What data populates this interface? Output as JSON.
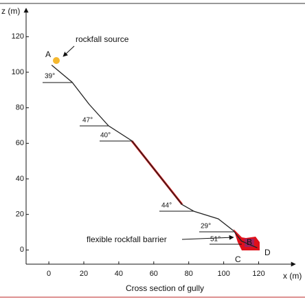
{
  "chart_data": {
    "type": "line",
    "title": "Cross section of gully",
    "x_label": "x (m)",
    "y_label": "z (m)",
    "x": [
      1.6,
      13.3,
      23.1,
      34.1,
      47.5,
      76.1,
      83.1,
      96.9,
      105.5,
      110.2,
      119.2
    ],
    "values": [
      104,
      94.4,
      81.9,
      69.9,
      61.4,
      25.6,
      21.7,
      17.5,
      10.9,
      5,
      1.2
    ],
    "color": "#222222",
    "xlim": [
      -13,
      141
    ],
    "xticks": [
      0,
      20,
      40,
      60,
      80,
      100,
      120
    ],
    "ylim": [
      -8,
      136
    ],
    "yticks": [
      0,
      20,
      40,
      60,
      80,
      100,
      120
    ],
    "annotations": {
      "source": "rockfall source",
      "barrier": "flexible rockfall barrier",
      "point_a": "A",
      "point_b": "B",
      "point_c": "C",
      "point_d": "D",
      "angles": [
        "39°",
        "47°",
        "40°",
        "44°",
        "29°",
        "51°"
      ]
    }
  }
}
